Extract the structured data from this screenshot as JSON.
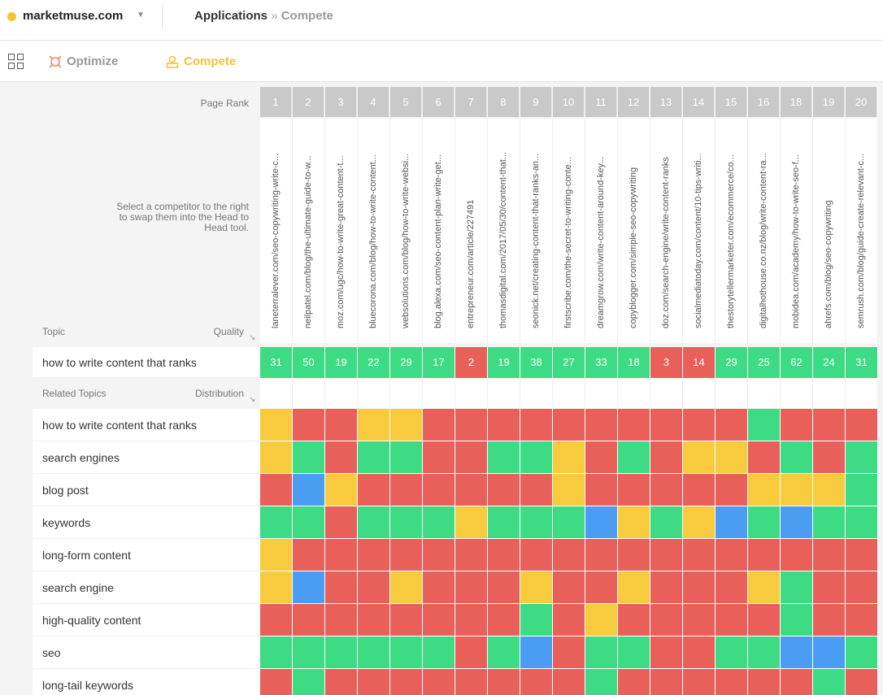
{
  "header": {
    "brand": "marketmuse.com",
    "breadcrumb_app": "Applications",
    "breadcrumb_sep": "»",
    "breadcrumb_current": "Compete"
  },
  "apps": {
    "optimize_label": "Optimize",
    "compete_label": "Compete"
  },
  "table": {
    "page_rank_label": "Page Rank",
    "hint": "Select a competitor to the right to swap them into the Head to Head tool.",
    "topic_label": "Topic",
    "quality_label": "Quality",
    "related_topics_label": "Related Topics",
    "distribution_label": "Distribution",
    "main_topic": "how to write content that ranks",
    "colors": {
      "green": "#3ddc84",
      "red": "#e9605b",
      "yellow": "#f8cb3f",
      "blue": "#4a9df2"
    },
    "competitors": [
      {
        "rank": "1",
        "url": "laneterralever.com/seo-copywriting-write-c...",
        "quality": "31"
      },
      {
        "rank": "2",
        "url": "neilpatel.com/blog/the-ultimate-guide-to-w...",
        "quality": "50"
      },
      {
        "rank": "3",
        "url": "moz.com/ugc/how-to-write-great-content-t...",
        "quality": "19"
      },
      {
        "rank": "4",
        "url": "bluecorona.com/blog/how-to-write-content...",
        "quality": "22"
      },
      {
        "rank": "5",
        "url": "websolutions.com/blog/how-to-write-websi...",
        "quality": "29"
      },
      {
        "rank": "6",
        "url": "blog.alexa.com/seo-content-plan-write-get...",
        "quality": "17"
      },
      {
        "rank": "7",
        "url": "entrepreneur.com/article/227491",
        "quality": "2"
      },
      {
        "rank": "8",
        "url": "thomasdigital.com/2017/05/30/content-that...",
        "quality": "19"
      },
      {
        "rank": "9",
        "url": "seonick.net/creating-content-that-ranks-an...",
        "quality": "38"
      },
      {
        "rank": "10",
        "url": "firstscribe.com/the-secret-to-writing-conte...",
        "quality": "27"
      },
      {
        "rank": "11",
        "url": "dreamgrow.com/write-content-around-key...",
        "quality": "33"
      },
      {
        "rank": "12",
        "url": "copyblogger.com/simple-seo-copywriting",
        "quality": "18"
      },
      {
        "rank": "13",
        "url": "doz.com/search-engine/write-content-ranks",
        "quality": "3"
      },
      {
        "rank": "14",
        "url": "socialmediatoday.com/content/10-tips-writi...",
        "quality": "14"
      },
      {
        "rank": "15",
        "url": "thestorytellermarketer.com/ecommerce/co...",
        "quality": "29"
      },
      {
        "rank": "16",
        "url": "digitalhothouse.co.nz/blog/write-content-ra...",
        "quality": "25"
      },
      {
        "rank": "18",
        "url": "mobidea.com/academy/how-to-write-seo-f...",
        "quality": "62"
      },
      {
        "rank": "19",
        "url": "ahrefs.com/blog/seo-copywriting",
        "quality": "24"
      },
      {
        "rank": "20",
        "url": "semrush.com/blog/guide-create-relevant-c...",
        "quality": "31"
      }
    ],
    "quality_colors": [
      "green",
      "green",
      "green",
      "green",
      "green",
      "green",
      "red",
      "green",
      "green",
      "green",
      "green",
      "green",
      "red",
      "red",
      "green",
      "green",
      "green",
      "green",
      "green"
    ],
    "topics": [
      {
        "label": "how to write content that ranks",
        "cells": [
          "yellow",
          "red",
          "red",
          "yellow",
          "yellow",
          "red",
          "red",
          "red",
          "red",
          "red",
          "red",
          "red",
          "red",
          "red",
          "red",
          "green",
          "red",
          "red",
          "red"
        ]
      },
      {
        "label": "search engines",
        "cells": [
          "yellow",
          "green",
          "red",
          "green",
          "green",
          "red",
          "red",
          "green",
          "green",
          "yellow",
          "red",
          "green",
          "red",
          "yellow",
          "yellow",
          "red",
          "green",
          "red",
          "green"
        ]
      },
      {
        "label": "blog post",
        "cells": [
          "red",
          "blue",
          "yellow",
          "red",
          "red",
          "red",
          "red",
          "red",
          "red",
          "yellow",
          "red",
          "red",
          "red",
          "red",
          "red",
          "yellow",
          "yellow",
          "yellow",
          "green"
        ]
      },
      {
        "label": "keywords",
        "cells": [
          "green",
          "green",
          "red",
          "green",
          "green",
          "green",
          "yellow",
          "green",
          "green",
          "green",
          "blue",
          "yellow",
          "green",
          "yellow",
          "blue",
          "green",
          "blue",
          "green",
          "green"
        ]
      },
      {
        "label": "long-form content",
        "cells": [
          "yellow",
          "red",
          "red",
          "red",
          "red",
          "red",
          "red",
          "red",
          "red",
          "red",
          "red",
          "red",
          "red",
          "red",
          "red",
          "red",
          "red",
          "red",
          "red"
        ]
      },
      {
        "label": "search engine",
        "cells": [
          "yellow",
          "blue",
          "red",
          "red",
          "yellow",
          "red",
          "red",
          "red",
          "yellow",
          "red",
          "red",
          "yellow",
          "red",
          "red",
          "red",
          "yellow",
          "green",
          "red",
          "red"
        ]
      },
      {
        "label": "high-quality content",
        "cells": [
          "red",
          "red",
          "red",
          "red",
          "red",
          "red",
          "red",
          "red",
          "green",
          "red",
          "yellow",
          "red",
          "red",
          "red",
          "red",
          "red",
          "green",
          "red",
          "red"
        ]
      },
      {
        "label": "seo",
        "cells": [
          "green",
          "green",
          "green",
          "green",
          "green",
          "green",
          "red",
          "green",
          "blue",
          "red",
          "green",
          "green",
          "red",
          "red",
          "green",
          "green",
          "blue",
          "blue",
          "green"
        ]
      },
      {
        "label": "long-tail keywords",
        "cells": [
          "red",
          "green",
          "red",
          "red",
          "red",
          "red",
          "red",
          "red",
          "red",
          "red",
          "green",
          "red",
          "red",
          "red",
          "red",
          "red",
          "red",
          "green",
          "red"
        ]
      }
    ]
  }
}
